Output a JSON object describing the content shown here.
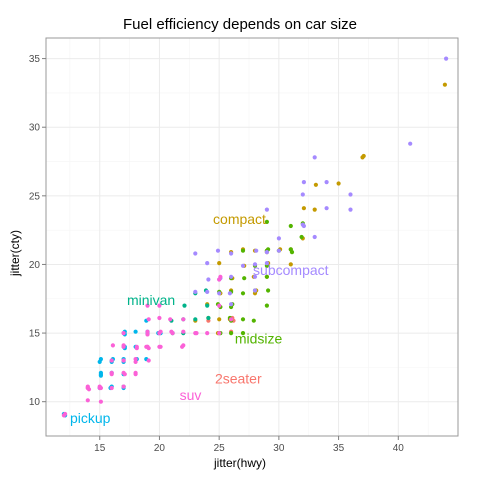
{
  "chart_data": {
    "type": "scatter",
    "title": "Fuel efficiency depends on car size",
    "xlabel": "jitter(hwy)",
    "ylabel": "jitter(cty)",
    "xlim": [
      10.5,
      45.0
    ],
    "ylim": [
      7.5,
      36.5
    ],
    "x_ticks": [
      15,
      20,
      25,
      30,
      35,
      40
    ],
    "y_ticks": [
      10,
      15,
      20,
      25,
      30,
      35
    ],
    "grid": true,
    "legend": "none (class names drawn directly on the plot)",
    "panel_background": "#ffffff",
    "grid_major_color": "#ebebeb",
    "grid_minor_color": "#f5f5f5",
    "border_color": "#999999",
    "labels": [
      {
        "text": "compact",
        "x": 26.7,
        "y": 23.3,
        "color": "#c49a00"
      },
      {
        "text": "subcompact",
        "x": 31.0,
        "y": 19.6,
        "color": "#a58aff"
      },
      {
        "text": "minivan",
        "x": 19.3,
        "y": 17.4,
        "color": "#00b38a"
      },
      {
        "text": "midsize",
        "x": 28.3,
        "y": 14.6,
        "color": "#53b400"
      },
      {
        "text": "2seater",
        "x": 26.6,
        "y": 11.7,
        "color": "#f8766d"
      },
      {
        "text": "suv",
        "x": 22.6,
        "y": 10.5,
        "color": "#fb61d7"
      },
      {
        "text": "pickup",
        "x": 14.2,
        "y": 8.8,
        "color": "#00b6eb"
      }
    ],
    "series": [
      {
        "name": "2seater",
        "color": "#f8766d",
        "points": [
          [
            26.1,
            16.1
          ],
          [
            25.0,
            15.0
          ],
          [
            26.0,
            15.1
          ],
          [
            24.1,
            15.9
          ],
          [
            26.2,
            15.9
          ]
        ]
      },
      {
        "name": "compact",
        "color": "#c49a00",
        "points": [
          [
            43.9,
            33.1
          ],
          [
            37.1,
            27.9
          ],
          [
            35.0,
            25.9
          ],
          [
            33.0,
            24.0
          ],
          [
            32.0,
            21.9
          ],
          [
            31.0,
            21.1
          ],
          [
            29.0,
            21.0
          ],
          [
            29.1,
            20.1
          ],
          [
            29.0,
            19.1
          ],
          [
            27.1,
            19.9
          ],
          [
            27.0,
            21.1
          ],
          [
            26.0,
            20.9
          ],
          [
            26.1,
            19.0
          ],
          [
            26.0,
            18.1
          ],
          [
            25.1,
            17.9
          ],
          [
            25.0,
            20.1
          ],
          [
            25.9,
            16.0
          ],
          [
            25.0,
            16.0
          ],
          [
            24.0,
            17.1
          ],
          [
            24.1,
            16.1
          ],
          [
            23.0,
            15.9
          ],
          [
            28.0,
            17.9
          ],
          [
            28.1,
            18.1
          ],
          [
            29.0,
            20.9
          ],
          [
            30.1,
            21.1
          ],
          [
            31.0,
            20.0
          ],
          [
            27.9,
            19.1
          ],
          [
            28.0,
            21.0
          ],
          [
            33.1,
            25.8
          ],
          [
            37.0,
            27.8
          ],
          [
            32.1,
            24.1
          ],
          [
            24.9,
            15.0
          ]
        ]
      },
      {
        "name": "midsize",
        "color": "#53b400",
        "points": [
          [
            26.0,
            19.0
          ],
          [
            27.1,
            19.0
          ],
          [
            26.1,
            17.1
          ],
          [
            26.0,
            18.0
          ],
          [
            25.9,
            16.1
          ],
          [
            28.0,
            18.1
          ],
          [
            29.1,
            18.1
          ],
          [
            29.0,
            17.0
          ],
          [
            27.0,
            17.9
          ],
          [
            27.9,
            15.9
          ],
          [
            27.0,
            16.0
          ],
          [
            26.0,
            15.0
          ],
          [
            25.1,
            16.9
          ],
          [
            25.0,
            18.0
          ],
          [
            24.9,
            17.1
          ],
          [
            29.0,
            19.1
          ],
          [
            29.0,
            19.9
          ],
          [
            28.0,
            19.9
          ],
          [
            27.0,
            21.0
          ],
          [
            29.1,
            21.1
          ],
          [
            30.0,
            21.0
          ],
          [
            31.0,
            21.1
          ],
          [
            31.9,
            22.0
          ],
          [
            31.0,
            22.8
          ],
          [
            29.0,
            23.1
          ],
          [
            32.0,
            23.0
          ],
          [
            29.0,
            21.0
          ],
          [
            31.1,
            20.9
          ],
          [
            26.0,
            16.9
          ],
          [
            25.1,
            15.0
          ],
          [
            26.0,
            15.9
          ],
          [
            27.0,
            15.0
          ]
        ]
      },
      {
        "name": "minivan",
        "color": "#00b38a",
        "points": [
          [
            24.0,
            17.0
          ],
          [
            24.1,
            16.1
          ],
          [
            22.0,
            16.0
          ],
          [
            22.0,
            15.0
          ],
          [
            23.0,
            16.0
          ],
          [
            21.0,
            15.9
          ],
          [
            21.1,
            15.0
          ],
          [
            17.0,
            11.1
          ],
          [
            22.1,
            17.0
          ],
          [
            23.9,
            18.1
          ],
          [
            23.0,
            17.9
          ]
        ]
      },
      {
        "name": "pickup",
        "color": "#00b6eb",
        "points": [
          [
            15.0,
            11.0
          ],
          [
            15.1,
            12.0
          ],
          [
            17.0,
            13.1
          ],
          [
            16.0,
            12.9
          ],
          [
            17.1,
            14.0
          ],
          [
            15.9,
            11.0
          ],
          [
            15.0,
            12.9
          ],
          [
            17.1,
            14.9
          ],
          [
            19.0,
            15.0
          ],
          [
            18.0,
            14.0
          ],
          [
            19.9,
            15.0
          ],
          [
            18.1,
            13.1
          ],
          [
            17.0,
            12.0
          ],
          [
            16.0,
            12.1
          ],
          [
            18.9,
            15.9
          ],
          [
            17.1,
            15.1
          ],
          [
            16.0,
            11.1
          ],
          [
            17.0,
            14.0
          ],
          [
            12.1,
            9.0
          ],
          [
            12.0,
            9.1
          ],
          [
            15.1,
            12.1
          ],
          [
            17.0,
            11.0
          ],
          [
            18.0,
            15.1
          ],
          [
            19.0,
            15.1
          ],
          [
            20.1,
            15.0
          ],
          [
            16.1,
            13.1
          ],
          [
            15.1,
            11.9
          ],
          [
            17.1,
            13.9
          ],
          [
            18.9,
            13.1
          ],
          [
            17.0,
            12.9
          ],
          [
            16.0,
            13.0
          ],
          [
            15.1,
            13.1
          ],
          [
            17.0,
            15.0
          ]
        ]
      },
      {
        "name": "subcompact",
        "color": "#a58aff",
        "points": [
          [
            44.0,
            35.0
          ],
          [
            41.0,
            28.8
          ],
          [
            36.0,
            24.0
          ],
          [
            36.0,
            25.1
          ],
          [
            34.0,
            26.0
          ],
          [
            32.1,
            26.0
          ],
          [
            32.0,
            25.1
          ],
          [
            29.0,
            24.0
          ],
          [
            32.0,
            22.9
          ],
          [
            33.0,
            22.0
          ],
          [
            30.0,
            21.9
          ],
          [
            29.0,
            20.9
          ],
          [
            28.1,
            21.0
          ],
          [
            28.0,
            20.0
          ],
          [
            28.0,
            19.1
          ],
          [
            27.0,
            19.9
          ],
          [
            26.0,
            20.8
          ],
          [
            25.1,
            19.0
          ],
          [
            26.0,
            19.1
          ],
          [
            25.9,
            17.9
          ],
          [
            25.0,
            17.9
          ],
          [
            24.1,
            18.9
          ],
          [
            23.0,
            20.8
          ],
          [
            24.0,
            20.1
          ],
          [
            24.9,
            21.0
          ],
          [
            29.0,
            20.1
          ],
          [
            30.0,
            21.0
          ],
          [
            33.0,
            27.8
          ],
          [
            32.1,
            22.8
          ],
          [
            34.0,
            24.1
          ],
          [
            26.0,
            17.1
          ],
          [
            23.0,
            18.0
          ],
          [
            24.0,
            18.0
          ],
          [
            25.0,
            18.9
          ],
          [
            28.0,
            18.1
          ]
        ]
      },
      {
        "name": "suv",
        "color": "#fb61d7",
        "points": [
          [
            12.0,
            9.0
          ],
          [
            12.1,
            9.1
          ],
          [
            14.0,
            11.1
          ],
          [
            14.1,
            10.9
          ],
          [
            15.0,
            11.0
          ],
          [
            14.0,
            10.1
          ],
          [
            15.1,
            10.0
          ],
          [
            14.0,
            11.0
          ],
          [
            16.0,
            11.0
          ],
          [
            17.0,
            11.1
          ],
          [
            16.0,
            12.0
          ],
          [
            17.1,
            12.0
          ],
          [
            17.0,
            13.0
          ],
          [
            18.0,
            12.1
          ],
          [
            19.1,
            13.0
          ],
          [
            18.0,
            13.1
          ],
          [
            18.9,
            14.0
          ],
          [
            18.1,
            14.0
          ],
          [
            17.0,
            14.0
          ],
          [
            16.1,
            14.1
          ],
          [
            17.0,
            15.0
          ],
          [
            19.0,
            15.1
          ],
          [
            19.0,
            14.9
          ],
          [
            20.1,
            14.0
          ],
          [
            20.0,
            15.0
          ],
          [
            21.1,
            15.0
          ],
          [
            22.0,
            15.1
          ],
          [
            22.0,
            16.0
          ],
          [
            20.0,
            16.1
          ],
          [
            19.1,
            16.0
          ],
          [
            19.0,
            17.0
          ],
          [
            20.0,
            17.0
          ],
          [
            22.0,
            14.1
          ],
          [
            23.0,
            15.0
          ],
          [
            25.0,
            18.9
          ],
          [
            25.1,
            19.1
          ],
          [
            26.0,
            16.0
          ],
          [
            24.0,
            15.0
          ],
          [
            25.0,
            17.0
          ],
          [
            25.0,
            15.0
          ],
          [
            17.0,
            14.1
          ],
          [
            18.1,
            13.9
          ],
          [
            19.0,
            14.0
          ],
          [
            20.1,
            15.1
          ],
          [
            21.0,
            15.1
          ],
          [
            21.9,
            14.0
          ],
          [
            23.1,
            15.0
          ],
          [
            20.9,
            16.0
          ],
          [
            20.0,
            15.0
          ],
          [
            19.0,
            14.9
          ],
          [
            16.0,
            13.0
          ],
          [
            15.1,
            11.0
          ],
          [
            14.0,
            11.0
          ],
          [
            15.0,
            11.1
          ],
          [
            16.0,
            12.1
          ],
          [
            17.0,
            13.0
          ],
          [
            17.0,
            12.1
          ],
          [
            18.0,
            12.9
          ],
          [
            19.0,
            14.0
          ],
          [
            19.1,
            13.9
          ],
          [
            20.0,
            14.0
          ],
          [
            18.0,
            12.0
          ]
        ]
      }
    ]
  }
}
